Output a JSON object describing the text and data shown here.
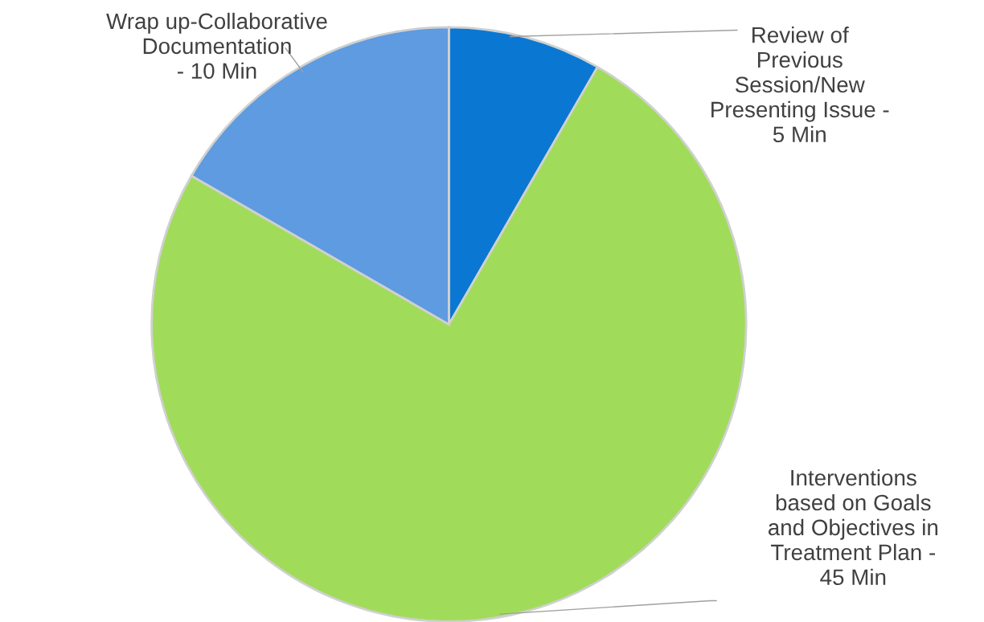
{
  "chart_data": {
    "type": "pie",
    "categories": [
      "Review of\nPrevious\nSession/New\nPresenting Issue -\n5 Min",
      "Interventions\nbased on Goals\nand Objectives in\nTreatment Plan -\n45 Min",
      "Wrap up-Collaborative\nDocumentation\n- 10 Min"
    ],
    "values": [
      5,
      45,
      10
    ],
    "colors": [
      "#0a78d2",
      "#a0dc5a",
      "#5e9be0"
    ],
    "legend": false
  }
}
